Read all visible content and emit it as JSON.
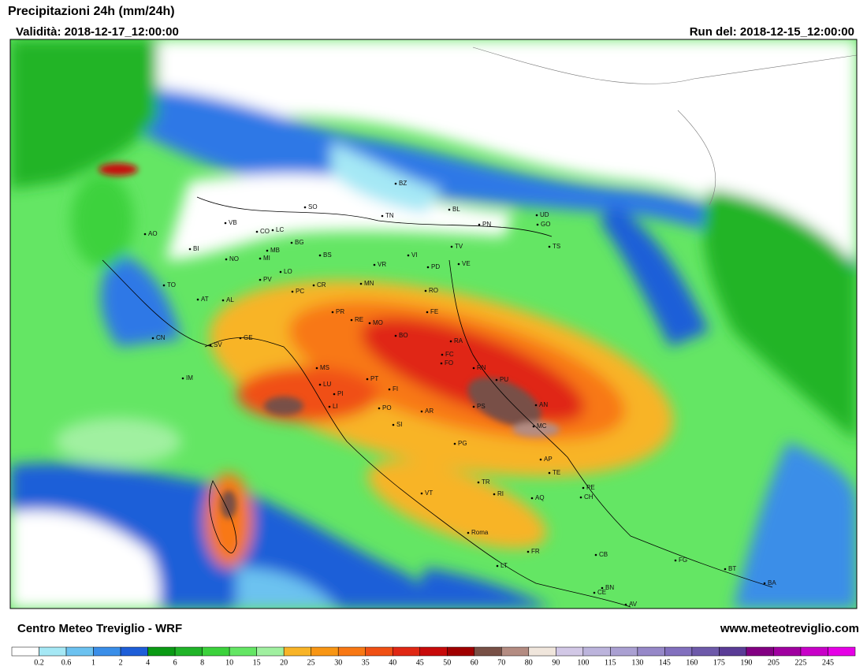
{
  "header": {
    "title": "Precipitazioni 24h (mm/24h)",
    "validity": "Validità: 2018-12-17_12:00:00",
    "run": "Run del: 2018-12-15_12:00:00"
  },
  "footer": {
    "left": "Centro Meteo Treviglio - WRF",
    "right": "www.meteotreviglio.com"
  },
  "legend": {
    "labels": [
      0.2,
      0.6,
      1,
      2,
      4,
      6,
      8,
      10,
      15,
      20,
      25,
      30,
      35,
      40,
      45,
      50,
      60,
      70,
      80,
      90,
      100,
      115,
      130,
      145,
      160,
      175,
      190,
      205,
      225,
      245
    ],
    "colors": [
      "#ffffff",
      "#a5e8f5",
      "#6cc2f0",
      "#3a8ee8",
      "#1e5ed8",
      "#0a9a14",
      "#20b428",
      "#3cd23c",
      "#64e664",
      "#a0f0a0",
      "#f8b428",
      "#f89614",
      "#f87814",
      "#f05014",
      "#e02814",
      "#c80a0a",
      "#a00000",
      "#785046",
      "#b48c82",
      "#f0e6dc",
      "#d2c8e6",
      "#bcb4dc",
      "#aaa0d2",
      "#9688c8",
      "#8270be",
      "#6e5aaa",
      "#5a3c96",
      "#820082",
      "#a000a0",
      "#c800c8",
      "#e600e6"
    ]
  },
  "map": {
    "labels": [
      "BZ",
      "SO",
      "TN",
      "BL",
      "UD",
      "VB",
      "CO",
      "LC",
      "BG",
      "AO",
      "BI",
      "MB",
      "MI",
      "BS",
      "VR",
      "VI",
      "TV",
      "PN",
      "GO",
      "TS",
      "PD",
      "VE",
      "NO",
      "TO",
      "PV",
      "LO",
      "CR",
      "MN",
      "RO",
      "AT",
      "AL",
      "PC",
      "PR",
      "RE",
      "MO",
      "FE",
      "BO",
      "RA",
      "CN",
      "SV",
      "GE",
      "FC",
      "FO",
      "RN",
      "PU",
      "MS",
      "LU",
      "PT",
      "FI",
      "PI",
      "LI",
      "PO",
      "AR",
      "PS",
      "AN",
      "MC",
      "SI",
      "PG",
      "AP",
      "TE",
      "TR",
      "RI",
      "AQ",
      "PE",
      "CH",
      "VT",
      "Roma",
      "FR",
      "LT",
      "CB",
      "FG",
      "BT",
      "BA",
      "BN",
      "CE",
      "AV",
      "IM"
    ]
  }
}
